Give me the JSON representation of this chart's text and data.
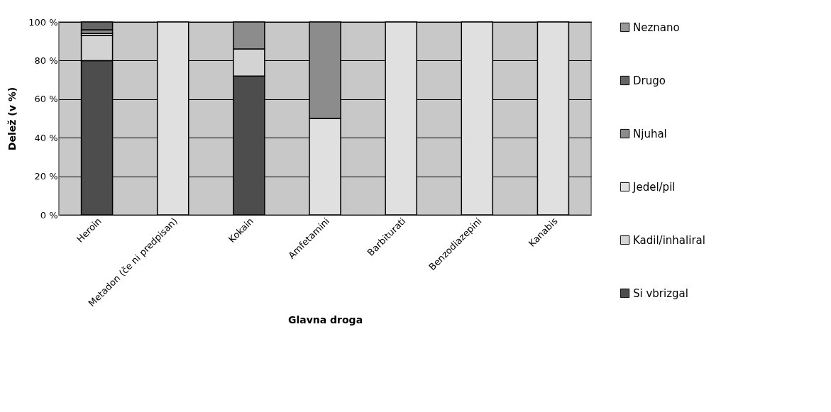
{
  "chart_data": {
    "type": "bar",
    "stacked": true,
    "xlabel": "Glavna droga",
    "ylabel": "Delež (v %)",
    "categories": [
      "Heroin",
      "Metadon (če ni predpisan)",
      "Kokain",
      "Amfetamini",
      "Barbiturati",
      "Benzodiazepini",
      "Kanabis"
    ],
    "series": [
      {
        "name": "Si vbrizgal",
        "color": "#4d4d4d",
        "values": [
          80,
          null,
          72,
          null,
          null,
          null,
          null
        ]
      },
      {
        "name": "Kadil/inhaliral",
        "color": "#d3d3d3",
        "values": [
          13,
          null,
          14,
          null,
          null,
          null,
          null
        ]
      },
      {
        "name": "Jedel/pil",
        "color": "#e0e0e0",
        "values": [
          1,
          100,
          null,
          50,
          100,
          100,
          100
        ]
      },
      {
        "name": "Njuhal",
        "color": "#8c8c8c",
        "values": [
          2,
          null,
          14,
          50,
          null,
          null,
          null
        ]
      },
      {
        "name": "Drugo",
        "color": "#666666",
        "values": [
          4,
          null,
          null,
          null,
          null,
          null,
          null
        ]
      },
      {
        "name": "Neznano",
        "color": "#999999",
        "values": [
          null,
          null,
          null,
          null,
          null,
          null,
          null
        ]
      }
    ],
    "ylim": [
      0,
      100
    ],
    "yticks": [
      {
        "value": 0,
        "label": "0 %"
      },
      {
        "value": 20,
        "label": "20 %"
      },
      {
        "value": 40,
        "label": "40 %"
      },
      {
        "value": 60,
        "label": "60 %"
      },
      {
        "value": 80,
        "label": "80 %"
      },
      {
        "value": 100,
        "label": "100 %"
      }
    ],
    "grid": "y",
    "legend": "right"
  }
}
